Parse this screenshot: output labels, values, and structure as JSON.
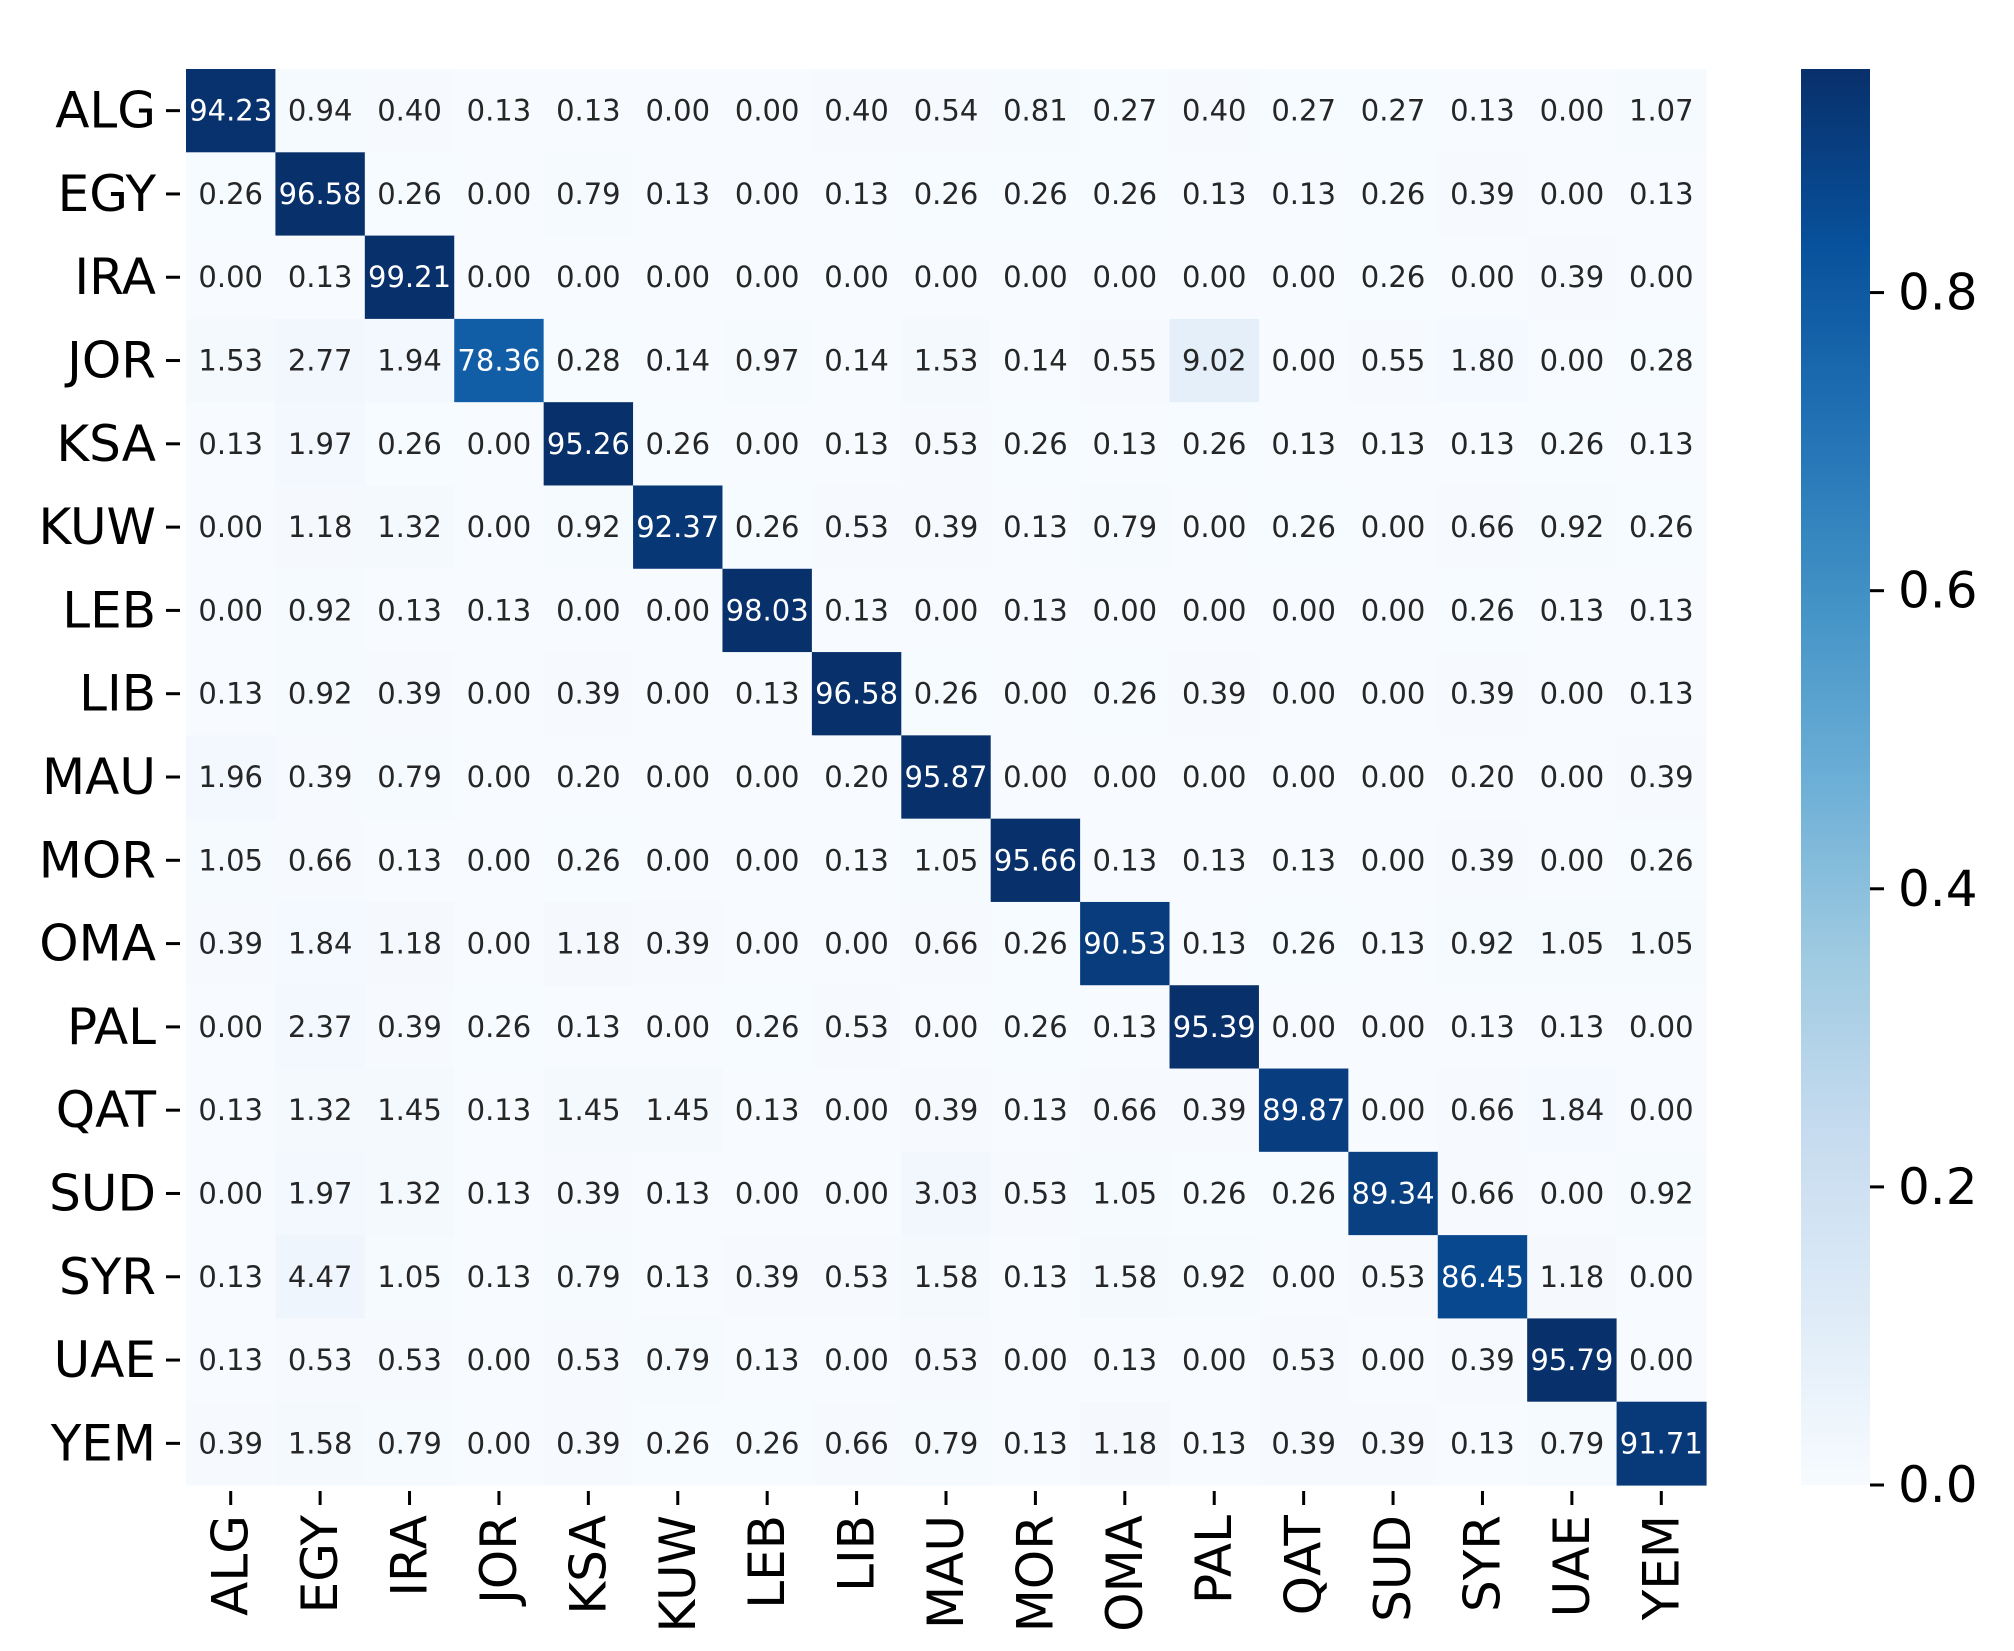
{
  "chart_data": {
    "type": "heatmap",
    "title": "",
    "xlabel": "",
    "ylabel": "",
    "row_labels": [
      "ALG",
      "EGY",
      "IRA",
      "JOR",
      "KSA",
      "KUW",
      "LEB",
      "LIB",
      "MAU",
      "MOR",
      "OMA",
      "PAL",
      "QAT",
      "SUD",
      "SYR",
      "UAE",
      "YEM"
    ],
    "col_labels": [
      "ALG",
      "EGY",
      "IRA",
      "JOR",
      "KSA",
      "KUW",
      "LEB",
      "LIB",
      "MAU",
      "MOR",
      "OMA",
      "PAL",
      "QAT",
      "SUD",
      "SYR",
      "UAE",
      "YEM"
    ],
    "cell_text": [
      [
        "94.23",
        "0.94",
        "0.40",
        "0.13",
        "0.13",
        "0.00",
        "0.00",
        "0.40",
        "0.54",
        "0.81",
        "0.27",
        "0.40",
        "0.27",
        "0.27",
        "0.13",
        "0.00",
        "1.07"
      ],
      [
        "0.26",
        "96.58",
        "0.26",
        "0.00",
        "0.79",
        "0.13",
        "0.00",
        "0.13",
        "0.26",
        "0.26",
        "0.26",
        "0.13",
        "0.13",
        "0.26",
        "0.39",
        "0.00",
        "0.13"
      ],
      [
        "0.00",
        "0.13",
        "99.21",
        "0.00",
        "0.00",
        "0.00",
        "0.00",
        "0.00",
        "0.00",
        "0.00",
        "0.00",
        "0.00",
        "0.00",
        "0.26",
        "0.00",
        "0.39",
        "0.00"
      ],
      [
        "1.53",
        "2.77",
        "1.94",
        "78.36",
        "0.28",
        "0.14",
        "0.97",
        "0.14",
        "1.53",
        "0.14",
        "0.55",
        "9.02",
        "0.00",
        "0.55",
        "1.80",
        "0.00",
        "0.28"
      ],
      [
        "0.13",
        "1.97",
        "0.26",
        "0.00",
        "95.26",
        "0.26",
        "0.00",
        "0.13",
        "0.53",
        "0.26",
        "0.13",
        "0.26",
        "0.13",
        "0.13",
        "0.13",
        "0.26",
        "0.13"
      ],
      [
        "0.00",
        "1.18",
        "1.32",
        "0.00",
        "0.92",
        "92.37",
        "0.26",
        "0.53",
        "0.39",
        "0.13",
        "0.79",
        "0.00",
        "0.26",
        "0.00",
        "0.66",
        "0.92",
        "0.26"
      ],
      [
        "0.00",
        "0.92",
        "0.13",
        "0.13",
        "0.00",
        "0.00",
        "98.03",
        "0.13",
        "0.00",
        "0.13",
        "0.00",
        "0.00",
        "0.00",
        "0.00",
        "0.26",
        "0.13",
        "0.13"
      ],
      [
        "0.13",
        "0.92",
        "0.39",
        "0.00",
        "0.39",
        "0.00",
        "0.13",
        "96.58",
        "0.26",
        "0.00",
        "0.26",
        "0.39",
        "0.00",
        "0.00",
        "0.39",
        "0.00",
        "0.13"
      ],
      [
        "1.96",
        "0.39",
        "0.79",
        "0.00",
        "0.20",
        "0.00",
        "0.00",
        "0.20",
        "95.87",
        "0.00",
        "0.00",
        "0.00",
        "0.00",
        "0.00",
        "0.20",
        "0.00",
        "0.39"
      ],
      [
        "1.05",
        "0.66",
        "0.13",
        "0.00",
        "0.26",
        "0.00",
        "0.00",
        "0.13",
        "1.05",
        "95.66",
        "0.13",
        "0.13",
        "0.13",
        "0.00",
        "0.39",
        "0.00",
        "0.26"
      ],
      [
        "0.39",
        "1.84",
        "1.18",
        "0.00",
        "1.18",
        "0.39",
        "0.00",
        "0.00",
        "0.66",
        "0.26",
        "90.53",
        "0.13",
        "0.26",
        "0.13",
        "0.92",
        "1.05",
        "1.05"
      ],
      [
        "0.00",
        "2.37",
        "0.39",
        "0.26",
        "0.13",
        "0.00",
        "0.26",
        "0.53",
        "0.00",
        "0.26",
        "0.13",
        "95.39",
        "0.00",
        "0.00",
        "0.13",
        "0.13",
        "0.00"
      ],
      [
        "0.13",
        "1.32",
        "1.45",
        "0.13",
        "1.45",
        "1.45",
        "0.13",
        "0.00",
        "0.39",
        "0.13",
        "0.66",
        "0.39",
        "89.87",
        "0.00",
        "0.66",
        "1.84",
        "0.00"
      ],
      [
        "0.00",
        "1.97",
        "1.32",
        "0.13",
        "0.39",
        "0.13",
        "0.00",
        "0.00",
        "3.03",
        "0.53",
        "1.05",
        "0.26",
        "0.26",
        "89.34",
        "0.66",
        "0.00",
        "0.92"
      ],
      [
        "0.13",
        "4.47",
        "1.05",
        "0.13",
        "0.79",
        "0.13",
        "0.39",
        "0.53",
        "1.58",
        "0.13",
        "1.58",
        "0.92",
        "0.00",
        "0.53",
        "86.45",
        "1.18",
        "0.00"
      ],
      [
        "0.13",
        "0.53",
        "0.53",
        "0.00",
        "0.53",
        "0.79",
        "0.13",
        "0.00",
        "0.53",
        "0.00",
        "0.13",
        "0.00",
        "0.53",
        "0.00",
        "0.39",
        "95.79",
        "0.00"
      ],
      [
        "0.39",
        "1.58",
        "0.79",
        "0.00",
        "0.39",
        "0.26",
        "0.26",
        "0.66",
        "0.79",
        "0.13",
        "1.18",
        "0.13",
        "0.39",
        "0.39",
        "0.13",
        "0.79",
        "91.71"
      ]
    ],
    "colorbar": {
      "colormap": "Blues",
      "range": [
        0,
        0.95
      ],
      "ticks": [
        0.0,
        0.2,
        0.4,
        0.6,
        0.8
      ],
      "tick_labels": [
        "0.0",
        "0.2",
        "0.4",
        "0.6",
        "0.8"
      ]
    },
    "colormap_stops": [
      "#f7fbff",
      "#deebf7",
      "#c6dbef",
      "#9ecae1",
      "#6baed6",
      "#4292c6",
      "#2171b5",
      "#08519c",
      "#08306b"
    ],
    "grid": false,
    "legend": "colorbar-right"
  }
}
